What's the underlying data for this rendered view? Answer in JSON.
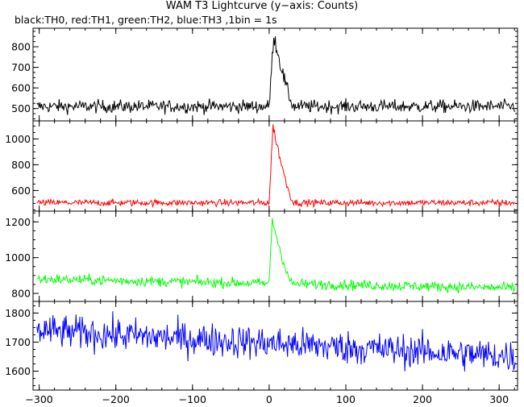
{
  "chart_data": {
    "type": "line",
    "title": "WAM T3 Lightcurve (y−axis: Counts)",
    "subtitle": "black:TH0, red:TH1, green:TH2, blue:TH3 ,1bin = 1s",
    "x_ticks": [
      -300,
      -200,
      -100,
      0,
      100,
      200,
      300
    ],
    "xlim": [
      -308,
      324
    ],
    "x_range_data": [
      -303,
      321
    ],
    "bin_seconds": 1,
    "series": [
      {
        "name": "TH0",
        "color": "#000000",
        "ylim": [
          440,
          890
        ],
        "yticks": [
          500,
          600,
          700,
          800
        ],
        "baseline": 510,
        "noise": 22,
        "burst_peak": 860,
        "burst_start": 0,
        "burst_peak_at": 6,
        "burst_end": 32,
        "trend_start": 0,
        "trend_end": 0
      },
      {
        "name": "TH1",
        "color": "#ff0000",
        "ylim": [
          440,
          1140
        ],
        "yticks": [
          600,
          800,
          1000
        ],
        "baseline": 505,
        "noise": 18,
        "burst_peak": 1100,
        "burst_start": 0,
        "burst_peak_at": 5,
        "burst_end": 32,
        "trend_start": 0,
        "trend_end": 0
      },
      {
        "name": "TH2",
        "color": "#00ff00",
        "ylim": [
          755,
          1260
        ],
        "yticks": [
          800,
          1000,
          1200
        ],
        "baseline": 860,
        "noise": 20,
        "burst_peak": 1220,
        "burst_start": 0,
        "burst_peak_at": 4,
        "burst_end": 30,
        "trend_start": 20,
        "trend_end": -30
      },
      {
        "name": "TH3",
        "color": "#0000ff",
        "ylim": [
          1535,
          1840
        ],
        "yticks": [
          1600,
          1700,
          1800
        ],
        "baseline": 1700,
        "noise": 40,
        "burst_peak": 1700,
        "burst_start": 0,
        "burst_peak_at": 0,
        "burst_end": 0,
        "trend_start": 40,
        "trend_end": -50
      }
    ]
  }
}
